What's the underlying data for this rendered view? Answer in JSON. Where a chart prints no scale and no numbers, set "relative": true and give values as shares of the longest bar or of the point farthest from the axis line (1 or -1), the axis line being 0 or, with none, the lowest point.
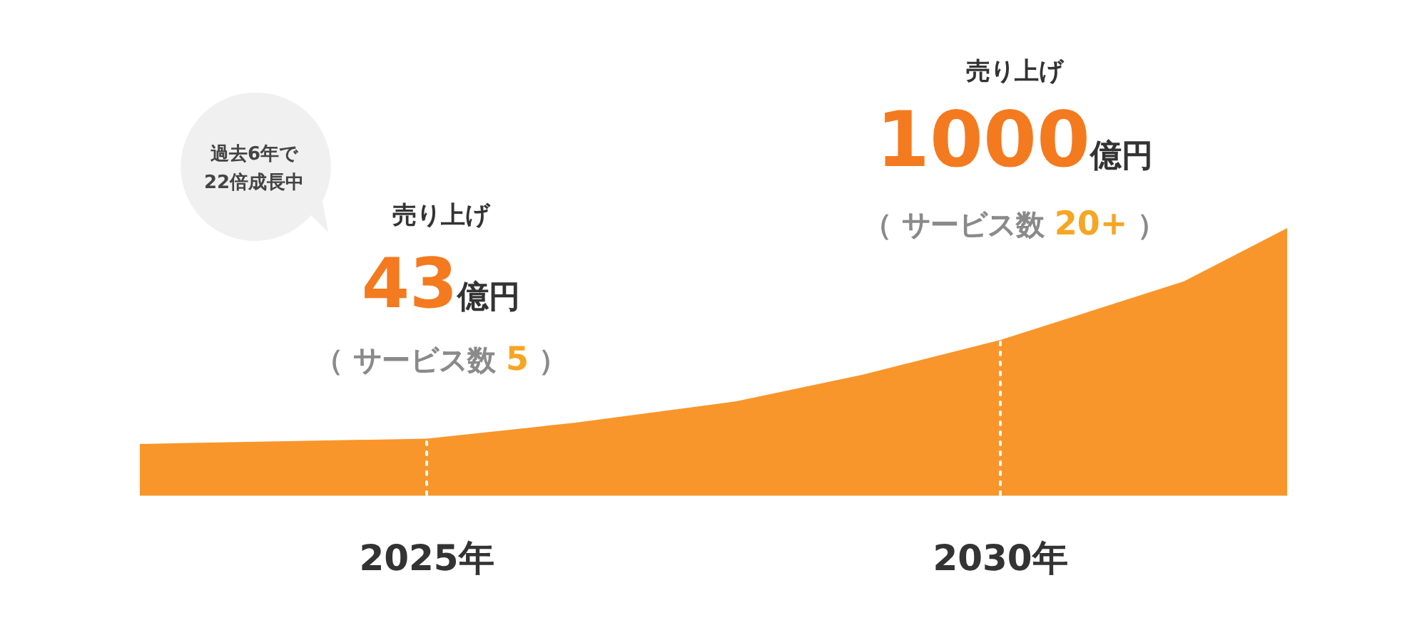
{
  "chart_data": {
    "type": "area",
    "relative": true,
    "color": "#f8962b",
    "x": [
      2022.5,
      2025,
      2026.3,
      2027.7,
      2028.8,
      2030,
      2031.6,
      2032.5
    ],
    "values": [
      0.19,
      0.21,
      0.27,
      0.35,
      0.45,
      0.58,
      0.8,
      1
    ],
    "xlim": [
      2022.5,
      2032.5
    ],
    "xticks": [
      {
        "value": 2025,
        "label": "2025年"
      },
      {
        "value": 2030,
        "label": "2030年"
      }
    ],
    "ref_lines": [
      {
        "axis": "x",
        "value": 2025,
        "color": "#ffffff",
        "line_style": "dotted"
      },
      {
        "axis": "x",
        "value": 2030,
        "color": "#ffffff",
        "line_style": "dotted"
      }
    ],
    "annotations": [
      "過去6年で22倍成長中",
      "売り上げ",
      "43億円",
      "（ サービス数 5 ）",
      "売り上げ",
      "1000億円",
      "（ サービス数 20+ ）"
    ]
  }
}
